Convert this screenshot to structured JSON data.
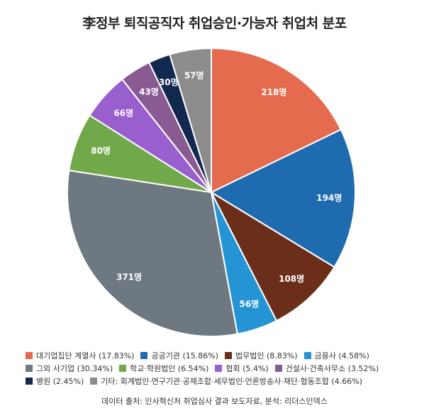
{
  "chart_data": {
    "type": "pie",
    "title": "李정부 퇴직공직자 취업승인·가능자 취업처 분포",
    "slices": [
      {
        "label": "대기업집단 계열사",
        "value": 218,
        "percent": "17.83%",
        "data_label": "218명",
        "color": "#e56b4e"
      },
      {
        "label": "공공기관",
        "value": 194,
        "percent": "15.86%",
        "data_label": "194명",
        "color": "#1f6bb0"
      },
      {
        "label": "법무법인",
        "value": 108,
        "percent": "8.83%",
        "data_label": "108명",
        "color": "#6b2e1a"
      },
      {
        "label": "금융사",
        "value": 56,
        "percent": "4.58%",
        "data_label": "56명",
        "color": "#2594d4"
      },
      {
        "label": "그외 사기업",
        "value": 371,
        "percent": "30.34%",
        "data_label": "371명",
        "color": "#6d7880"
      },
      {
        "label": "학교·학원법인",
        "value": 80,
        "percent": "6.54%",
        "data_label": "80명",
        "color": "#71a84a"
      },
      {
        "label": "협회",
        "value": 66,
        "percent": "5.4%",
        "data_label": "66명",
        "color": "#9a5fce"
      },
      {
        "label": "건설사·건축사무소",
        "value": 43,
        "percent": "3.52%",
        "data_label": "43명",
        "color": "#8a5b93"
      },
      {
        "label": "병원",
        "value": 30,
        "percent": "2.45%",
        "data_label": "30명",
        "color": "#13284f"
      },
      {
        "label": "기타: 회계법인·연구기관·공제조합·세무법인·언론방송사·재단·협동조합",
        "value": 57,
        "percent": "4.66%",
        "data_label": "57명",
        "color": "#8c8c8c"
      }
    ],
    "legend_rows": [
      [
        0,
        1,
        2,
        3
      ],
      [
        4,
        5,
        6,
        7
      ],
      [
        8,
        9
      ]
    ],
    "legend_placement": "bottom"
  },
  "source_text": "데이터 출처: 인사혁신처 취업심사 결과 보도자료, 분석: 리더스인덱스"
}
